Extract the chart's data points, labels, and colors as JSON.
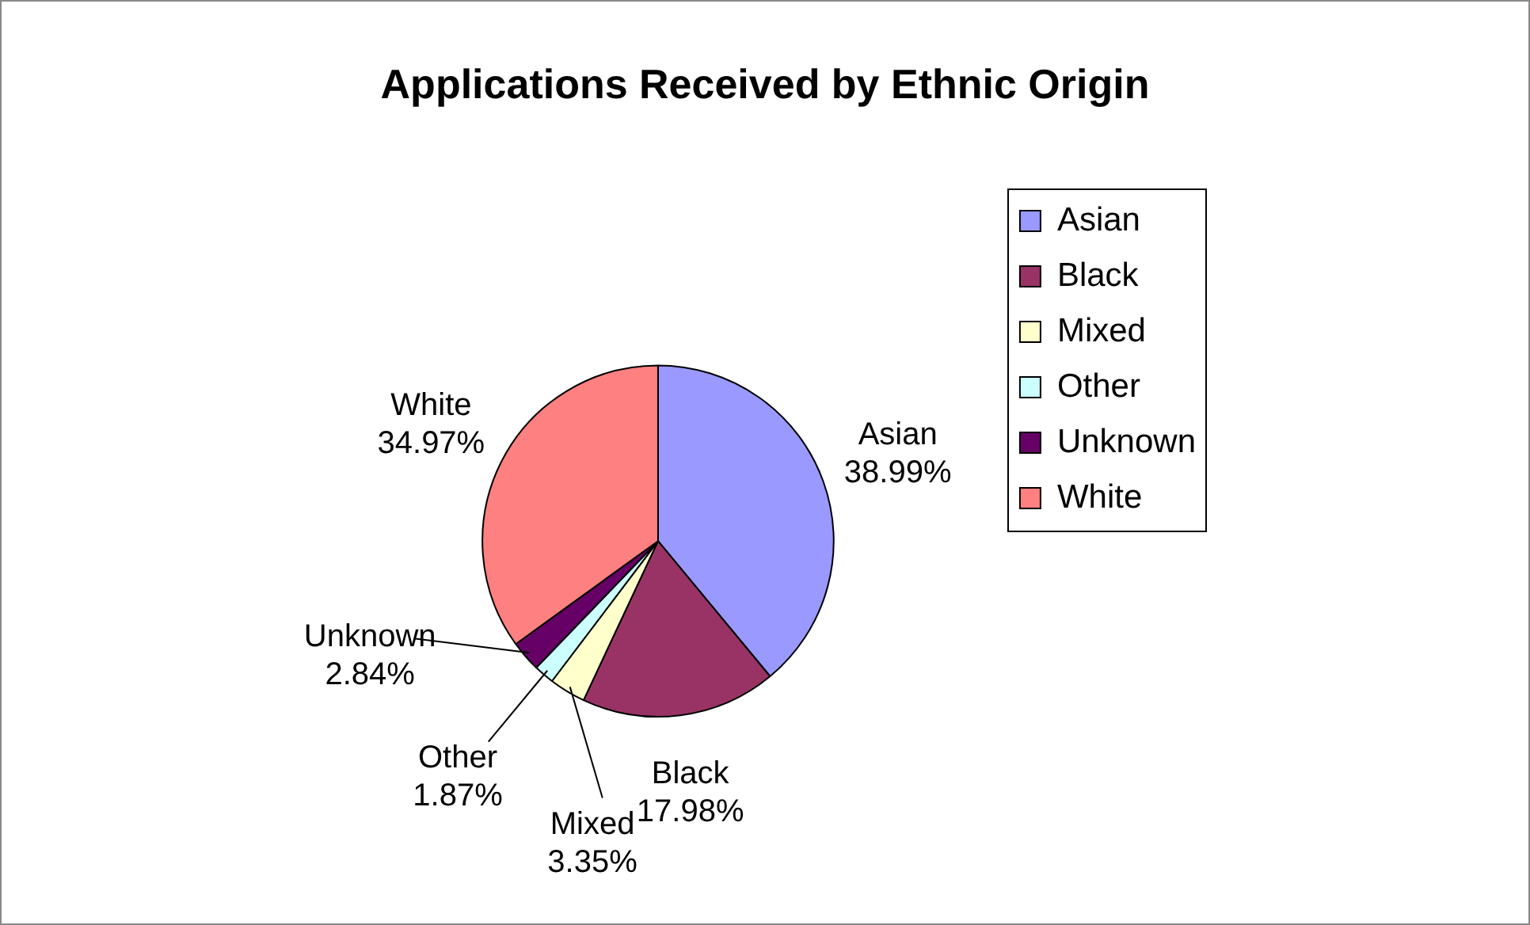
{
  "chart_data": {
    "type": "pie",
    "title": "Applications Received by Ethnic Origin",
    "categories": [
      "Asian",
      "Black",
      "Mixed",
      "Other",
      "Unknown",
      "White"
    ],
    "values": [
      38.99,
      17.98,
      3.35,
      1.87,
      2.84,
      34.97
    ],
    "value_labels": [
      "38.99%",
      "17.98%",
      "3.35%",
      "1.87%",
      "2.84%",
      "34.97%"
    ],
    "colors": [
      "#9999ff",
      "#993366",
      "#ffffcc",
      "#ccffff",
      "#660066",
      "#ff8080"
    ],
    "legend": "right"
  }
}
